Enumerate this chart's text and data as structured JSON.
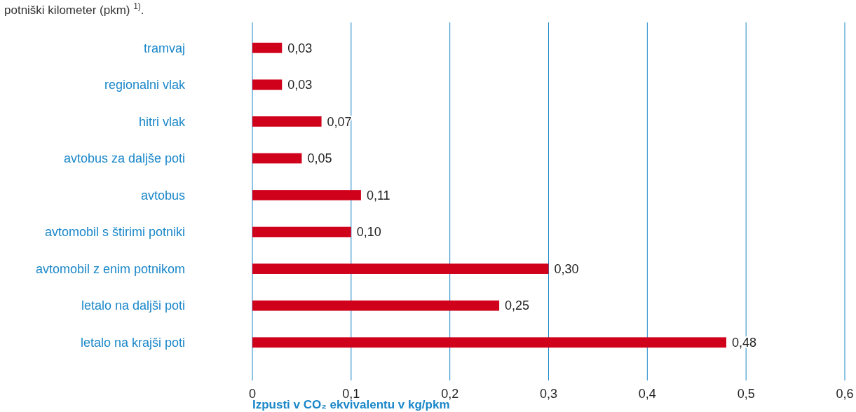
{
  "chart_data": {
    "type": "bar",
    "orientation": "horizontal",
    "title": "potniški kilometer (pkm) $^{1)}$.",
    "xlabel": "Izpusti v CO₂ ekvivalentu v kg/pkm",
    "categories": [
      "tramvaj",
      "regionalni vlak",
      "hitri vlak",
      "avtobus za daljše poti",
      "avtobus",
      "avtomobil s štirimi potniki",
      "avtomobil z enim potnikom",
      "letalo na daljši poti",
      "letalo na krajši poti"
    ],
    "values": [
      0.03,
      0.03,
      0.07,
      0.05,
      0.11,
      0.1,
      0.3,
      0.25,
      0.48
    ],
    "value_labels": [
      "0,03",
      "0,03",
      "0,07",
      "0,05",
      "0,11",
      "0,10",
      "0,30",
      "0,25",
      "0,48"
    ],
    "color": "#d0021b",
    "xlim": [
      0,
      0.6
    ],
    "xticks": [
      {
        "value": 0,
        "label": "0"
      },
      {
        "value": 0.1,
        "label": "0,1"
      },
      {
        "value": 0.2,
        "label": "0,2"
      },
      {
        "value": 0.3,
        "label": "0,3"
      },
      {
        "value": 0.4,
        "label": "0,4"
      },
      {
        "value": 0.5,
        "label": "0,5"
      },
      {
        "value": 0.6,
        "label": "0,6"
      }
    ],
    "grid": "x"
  }
}
